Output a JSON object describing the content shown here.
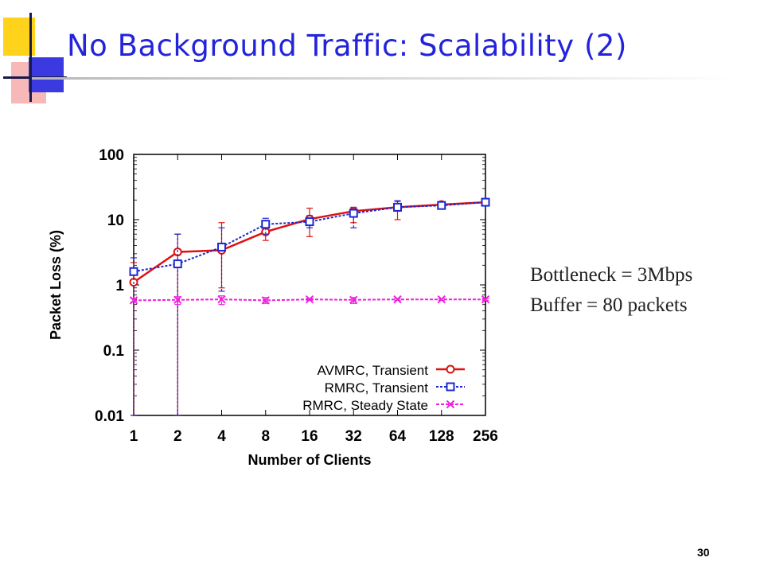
{
  "title": "No Background Traffic: Scalability (2)",
  "annotations": [
    "Bottleneck = 3Mbps",
    "Buffer = 80 packets"
  ],
  "page_number": "30",
  "colors": {
    "title": "#2323dc",
    "avmrc": "#dd1111",
    "rmrc_transient": "#1a2ad0",
    "rmrc_steady": "#ee22dd",
    "deco_yellow": "#ffd21c",
    "deco_blue": "#3a3ae0",
    "deco_red": "#ee3333"
  },
  "chart_data": {
    "type": "line",
    "xlabel": "Number of Clients",
    "ylabel": "Packet Loss (%)",
    "x_scale": "log2",
    "y_scale": "log10",
    "categories": [
      "1",
      "2",
      "4",
      "8",
      "16",
      "32",
      "64",
      "128",
      "256"
    ],
    "x": [
      1,
      2,
      4,
      8,
      16,
      32,
      64,
      128,
      256
    ],
    "ylim": [
      0.01,
      100
    ],
    "y_ticks": [
      "0.01",
      "0.1",
      "1",
      "10",
      "100"
    ],
    "y_tick_values": [
      0.01,
      0.1,
      1,
      10,
      100
    ],
    "legend_position": "bottom-right",
    "series": [
      {
        "name": "AVMRC, Transient",
        "marker": "circle",
        "color": "#dd1111",
        "values": [
          1.1,
          3.2,
          3.4,
          6.5,
          10.2,
          13.5,
          15.5,
          17.0,
          18.5
        ],
        "err_low": [
          0.01,
          0.01,
          0.9,
          4.8,
          5.5,
          9.0,
          10.0,
          15.0,
          17.5
        ],
        "err_high": [
          2.2,
          6.0,
          9.0,
          8.5,
          15.0,
          15.5,
          19.0,
          18.5,
          19.5
        ]
      },
      {
        "name": "RMRC, Transient",
        "marker": "square",
        "color": "#1a2ad0",
        "values": [
          1.6,
          2.1,
          3.8,
          8.5,
          9.3,
          12.5,
          15.5,
          16.5,
          18.5
        ],
        "err_low": [
          0.01,
          0.01,
          0.8,
          6.0,
          7.5,
          7.5,
          13.5,
          15.5,
          18.0
        ],
        "err_high": [
          2.6,
          6.0,
          7.5,
          10.5,
          11.5,
          14.5,
          19.5,
          18.0,
          19.0
        ]
      },
      {
        "name": "RMRC, Steady State",
        "marker": "x",
        "color": "#ee22dd",
        "values": [
          0.58,
          0.59,
          0.6,
          0.58,
          0.6,
          0.59,
          0.6,
          0.6,
          0.6
        ],
        "err_low": [
          0.55,
          0.5,
          0.5,
          0.52,
          0.58,
          0.52,
          0.58,
          0.58,
          0.58
        ],
        "err_high": [
          0.62,
          0.66,
          0.68,
          0.64,
          0.62,
          0.64,
          0.62,
          0.62,
          0.62
        ]
      }
    ]
  }
}
